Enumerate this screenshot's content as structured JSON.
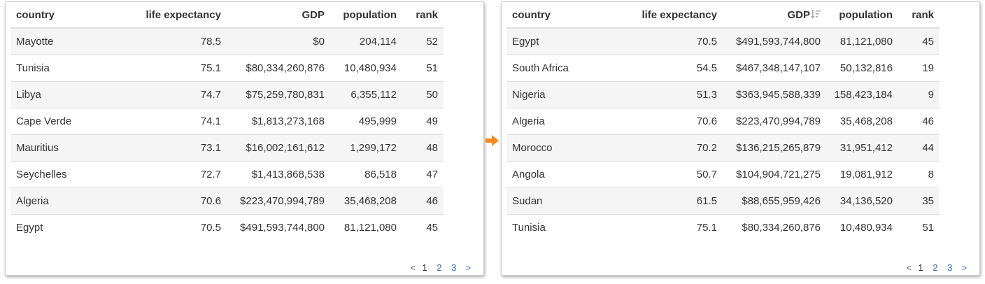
{
  "headers": {
    "country": "country",
    "life_expectancy": "life expectancy",
    "gdp": "GDP",
    "population": "population",
    "rank": "rank"
  },
  "left_table": {
    "sort_column": "none",
    "rows": [
      {
        "country": "Mayotte",
        "life": "78.5",
        "gdp": "$0",
        "pop": "204,114",
        "rank": "52"
      },
      {
        "country": "Tunisia",
        "life": "75.1",
        "gdp": "$80,334,260,876",
        "pop": "10,480,934",
        "rank": "51"
      },
      {
        "country": "Libya",
        "life": "74.7",
        "gdp": "$75,259,780,831",
        "pop": "6,355,112",
        "rank": "50"
      },
      {
        "country": "Cape Verde",
        "life": "74.1",
        "gdp": "$1,813,273,168",
        "pop": "495,999",
        "rank": "49"
      },
      {
        "country": "Mauritius",
        "life": "73.1",
        "gdp": "$16,002,161,612",
        "pop": "1,299,172",
        "rank": "48"
      },
      {
        "country": "Seychelles",
        "life": "72.7",
        "gdp": "$1,413,868,538",
        "pop": "86,518",
        "rank": "47"
      },
      {
        "country": "Algeria",
        "life": "70.6",
        "gdp": "$223,470,994,789",
        "pop": "35,468,208",
        "rank": "46"
      },
      {
        "country": "Egypt",
        "life": "70.5",
        "gdp": "$491,593,744,800",
        "pop": "81,121,080",
        "rank": "45"
      }
    ],
    "pagination": {
      "prev": "<",
      "pages": [
        "1",
        "2",
        "3"
      ],
      "current": "1",
      "next": ">"
    }
  },
  "right_table": {
    "sort_column": "GDP",
    "sort_direction": "descending",
    "sort_icon": "sort-descending-icon",
    "rows": [
      {
        "country": "Egypt",
        "life": "70.5",
        "gdp": "$491,593,744,800",
        "pop": "81,121,080",
        "rank": "45"
      },
      {
        "country": "South Africa",
        "life": "54.5",
        "gdp": "$467,348,147,107",
        "pop": "50,132,816",
        "rank": "19"
      },
      {
        "country": "Nigeria",
        "life": "51.3",
        "gdp": "$363,945,588,339",
        "pop": "158,423,184",
        "rank": "9"
      },
      {
        "country": "Algeria",
        "life": "70.6",
        "gdp": "$223,470,994,789",
        "pop": "35,468,208",
        "rank": "46"
      },
      {
        "country": "Morocco",
        "life": "70.2",
        "gdp": "$136,215,265,879",
        "pop": "31,951,412",
        "rank": "44"
      },
      {
        "country": "Angola",
        "life": "50.7",
        "gdp": "$104,904,721,275",
        "pop": "19,081,912",
        "rank": "8"
      },
      {
        "country": "Sudan",
        "life": "61.5",
        "gdp": "$88,655,959,426",
        "pop": "34,136,520",
        "rank": "35"
      },
      {
        "country": "Tunisia",
        "life": "75.1",
        "gdp": "$80,334,260,876",
        "pop": "10,480,934",
        "rank": "51"
      }
    ],
    "pagination": {
      "prev": "<",
      "pages": [
        "1",
        "2",
        "3"
      ],
      "current": "1",
      "next": ">"
    }
  },
  "transition_arrow": {
    "icon": "arrow-right-icon",
    "color": "#f28a1c"
  },
  "colors": {
    "link": "#2a6ebb",
    "row_stripe": "#f5f5f5",
    "border": "#dddddd",
    "sort_icon": "#aaaaaa"
  }
}
